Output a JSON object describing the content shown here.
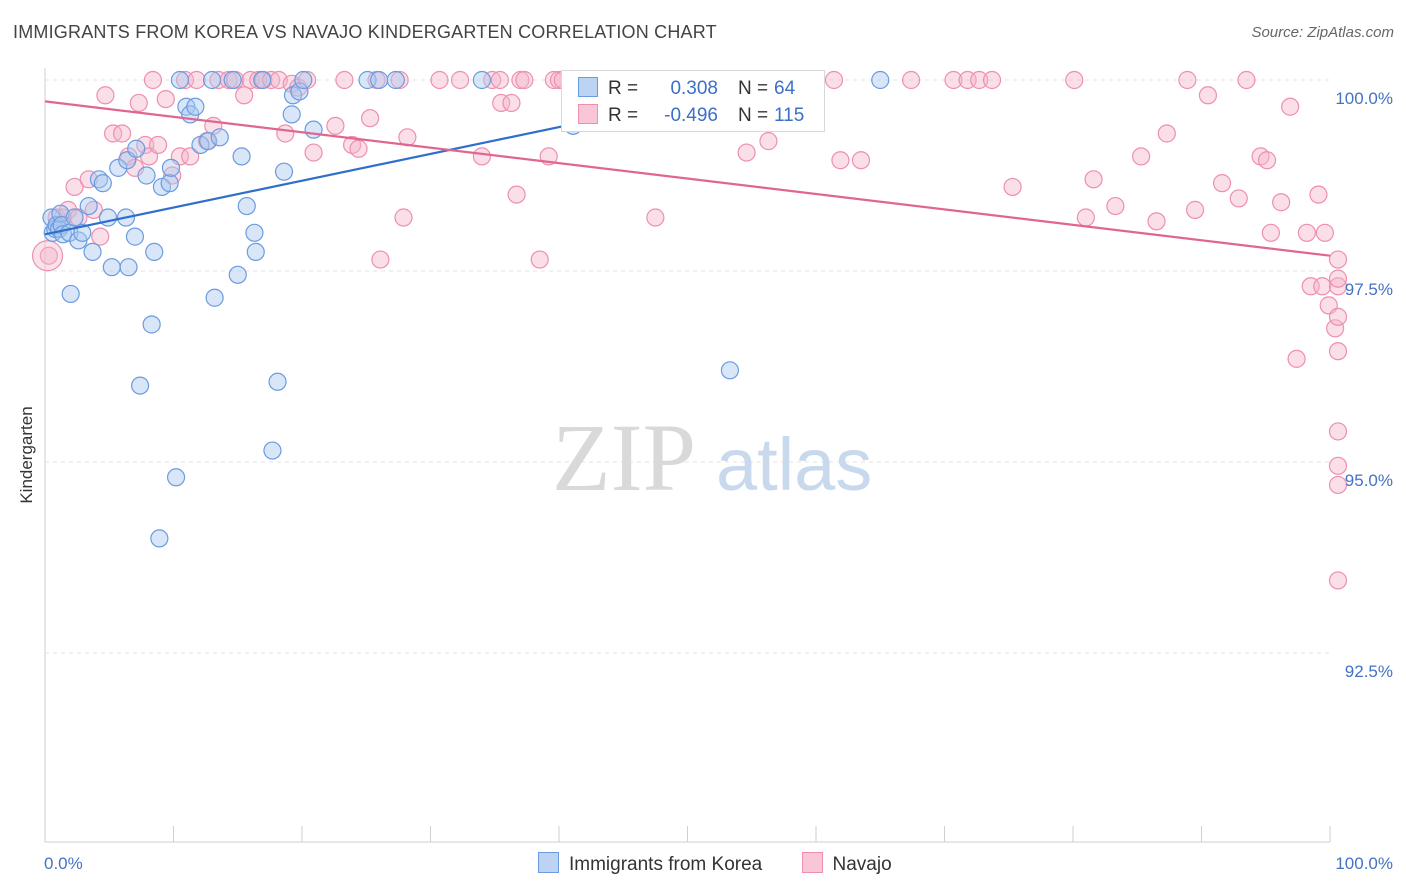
{
  "header": {
    "title": "IMMIGRANTS FROM KOREA VS NAVAJO KINDERGARTEN CORRELATION CHART",
    "source": "Source: ZipAtlas.com"
  },
  "watermark": {
    "zip": "ZIP",
    "atlas": "atlas"
  },
  "colors": {
    "korea_fill": "#a9c7ef",
    "korea_stroke": "#6b9be0",
    "korea_line": "#2f6fcb",
    "navajo_fill": "#f5b6cb",
    "navajo_stroke": "#ee8fae",
    "navajo_line": "#e0668f",
    "tick_text": "#4472c4"
  },
  "legend": {
    "rows": [
      {
        "r_label": "R =",
        "r_value": "0.308",
        "n_label": "N =",
        "n_value": "64"
      },
      {
        "r_label": "R =",
        "r_value": "-0.496",
        "n_label": "N =",
        "n_value": "115"
      }
    ]
  },
  "bottom_legend": {
    "series1": "Immigrants from Korea",
    "series2": "Navajo"
  },
  "chart_data": {
    "type": "scatter",
    "title": "IMMIGRANTS FROM KOREA VS NAVAJO KINDERGARTEN CORRELATION CHART",
    "xlabel": "",
    "ylabel": "Kindergarten",
    "xlim": [
      0,
      100
    ],
    "ylim": [
      90.5,
      100.15
    ],
    "x_ticks": [
      "0.0%",
      "100.0%"
    ],
    "y_ticks": [
      {
        "value": 100.0,
        "label": "100.0%"
      },
      {
        "value": 97.5,
        "label": "97.5%"
      },
      {
        "value": 95.0,
        "label": "95.0%"
      },
      {
        "value": 92.5,
        "label": "92.5%"
      }
    ],
    "legend_position": "top-center",
    "grid": true,
    "series": [
      {
        "name": "Immigrants from Korea",
        "trend": {
          "x0": 0,
          "y0": 97.98,
          "x1": 57,
          "y1": 99.98
        },
        "points": [
          [
            0.5,
            98.2
          ],
          [
            0.6,
            98.0
          ],
          [
            0.8,
            98.05
          ],
          [
            0.9,
            98.1
          ],
          [
            1.1,
            98.05
          ],
          [
            1.2,
            98.25
          ],
          [
            1.3,
            98.1
          ],
          [
            1.4,
            97.98
          ],
          [
            1.9,
            98.0
          ],
          [
            2.0,
            97.2
          ],
          [
            2.3,
            98.2
          ],
          [
            2.6,
            97.9
          ],
          [
            2.9,
            98.0
          ],
          [
            3.4,
            98.35
          ],
          [
            3.7,
            97.75
          ],
          [
            4.2,
            98.7
          ],
          [
            4.5,
            98.65
          ],
          [
            4.9,
            98.2
          ],
          [
            5.2,
            97.55
          ],
          [
            5.7,
            98.85
          ],
          [
            6.3,
            98.2
          ],
          [
            6.4,
            98.95
          ],
          [
            6.5,
            97.55
          ],
          [
            7.0,
            97.95
          ],
          [
            7.1,
            99.1
          ],
          [
            7.4,
            96.0
          ],
          [
            7.9,
            98.75
          ],
          [
            8.3,
            96.8
          ],
          [
            8.5,
            97.75
          ],
          [
            8.9,
            94.0
          ],
          [
            9.1,
            98.6
          ],
          [
            9.7,
            98.65
          ],
          [
            9.8,
            98.85
          ],
          [
            10.2,
            94.8
          ],
          [
            10.5,
            100.0
          ],
          [
            11.0,
            99.65
          ],
          [
            11.3,
            99.55
          ],
          [
            11.7,
            99.65
          ],
          [
            12.1,
            99.15
          ],
          [
            12.7,
            99.2
          ],
          [
            13.0,
            100.0
          ],
          [
            13.2,
            97.15
          ],
          [
            13.6,
            99.25
          ],
          [
            14.6,
            100.0
          ],
          [
            15.0,
            97.45
          ],
          [
            15.3,
            99.0
          ],
          [
            15.7,
            98.35
          ],
          [
            16.3,
            98.0
          ],
          [
            16.4,
            97.75
          ],
          [
            16.9,
            100.0
          ],
          [
            17.7,
            95.15
          ],
          [
            18.1,
            96.05
          ],
          [
            18.6,
            98.8
          ],
          [
            19.2,
            99.55
          ],
          [
            19.3,
            99.8
          ],
          [
            19.8,
            99.85
          ],
          [
            20.1,
            100.0
          ],
          [
            20.9,
            99.35
          ],
          [
            25.1,
            100.0
          ],
          [
            26.0,
            100.0
          ],
          [
            27.3,
            100.0
          ],
          [
            34.0,
            100.0
          ],
          [
            41.1,
            99.4
          ],
          [
            51.7,
            100.0
          ],
          [
            53.3,
            96.2
          ],
          [
            65.0,
            100.0
          ]
        ]
      },
      {
        "name": "Navajo",
        "trend": {
          "x0": 0,
          "y0": 99.72,
          "x1": 100,
          "y1": 97.7
        },
        "points": [
          [
            0.3,
            97.7
          ],
          [
            0.9,
            98.2
          ],
          [
            1.4,
            98.2
          ],
          [
            1.8,
            98.3
          ],
          [
            2.3,
            98.6
          ],
          [
            2.6,
            98.2
          ],
          [
            3.4,
            98.7
          ],
          [
            3.8,
            98.3
          ],
          [
            4.3,
            97.95
          ],
          [
            4.7,
            99.8
          ],
          [
            5.3,
            99.3
          ],
          [
            6.0,
            99.3
          ],
          [
            6.5,
            99.0
          ],
          [
            7.0,
            98.85
          ],
          [
            7.3,
            99.7
          ],
          [
            7.8,
            99.15
          ],
          [
            8.1,
            99.0
          ],
          [
            8.4,
            100.0
          ],
          [
            8.8,
            99.15
          ],
          [
            9.4,
            99.75
          ],
          [
            9.9,
            98.75
          ],
          [
            10.5,
            99.0
          ],
          [
            10.9,
            100.0
          ],
          [
            11.3,
            99.0
          ],
          [
            11.8,
            100.0
          ],
          [
            12.6,
            99.2
          ],
          [
            13.1,
            99.4
          ],
          [
            13.5,
            100.0
          ],
          [
            14.3,
            100.0
          ],
          [
            14.8,
            100.0
          ],
          [
            15.5,
            99.8
          ],
          [
            16.0,
            100.0
          ],
          [
            16.6,
            100.0
          ],
          [
            17.0,
            100.0
          ],
          [
            17.6,
            100.0
          ],
          [
            18.2,
            100.0
          ],
          [
            18.7,
            99.3
          ],
          [
            19.2,
            99.95
          ],
          [
            19.7,
            99.9
          ],
          [
            20.4,
            100.0
          ],
          [
            20.9,
            99.05
          ],
          [
            22.6,
            99.4
          ],
          [
            23.3,
            100.0
          ],
          [
            23.9,
            99.15
          ],
          [
            24.4,
            99.1
          ],
          [
            25.3,
            99.5
          ],
          [
            25.8,
            100.0
          ],
          [
            26.1,
            97.65
          ],
          [
            27.6,
            100.0
          ],
          [
            27.9,
            98.2
          ],
          [
            28.2,
            99.25
          ],
          [
            30.7,
            100.0
          ],
          [
            32.3,
            100.0
          ],
          [
            34.0,
            99.0
          ],
          [
            34.8,
            100.0
          ],
          [
            35.5,
            99.7
          ],
          [
            36.3,
            99.7
          ],
          [
            35.4,
            100.0
          ],
          [
            36.7,
            98.5
          ],
          [
            37.0,
            100.0
          ],
          [
            37.3,
            100.0
          ],
          [
            38.5,
            97.65
          ],
          [
            39.2,
            99.0
          ],
          [
            39.6,
            100.0
          ],
          [
            40.0,
            100.0
          ],
          [
            40.3,
            100.0
          ],
          [
            42.3,
            100.0
          ],
          [
            42.7,
            100.0
          ],
          [
            45.0,
            100.0
          ],
          [
            47.5,
            98.2
          ],
          [
            52.0,
            100.0
          ],
          [
            54.6,
            99.05
          ],
          [
            56.3,
            99.2
          ],
          [
            57.0,
            99.85
          ],
          [
            58.3,
            100.0
          ],
          [
            59.0,
            100.0
          ],
          [
            61.4,
            100.0
          ],
          [
            61.9,
            98.95
          ],
          [
            63.5,
            98.95
          ],
          [
            67.4,
            100.0
          ],
          [
            70.7,
            100.0
          ],
          [
            71.8,
            100.0
          ],
          [
            72.7,
            100.0
          ],
          [
            73.7,
            100.0
          ],
          [
            75.3,
            98.6
          ],
          [
            80.1,
            100.0
          ],
          [
            81.0,
            98.2
          ],
          [
            81.6,
            98.7
          ],
          [
            83.3,
            98.35
          ],
          [
            85.3,
            99.0
          ],
          [
            86.5,
            98.15
          ],
          [
            87.3,
            99.3
          ],
          [
            88.9,
            100.0
          ],
          [
            89.5,
            98.3
          ],
          [
            90.5,
            99.8
          ],
          [
            91.6,
            98.65
          ],
          [
            92.9,
            98.45
          ],
          [
            93.5,
            100.0
          ],
          [
            94.6,
            99.0
          ],
          [
            95.1,
            98.95
          ],
          [
            95.4,
            98.0
          ],
          [
            96.2,
            98.4
          ],
          [
            96.9,
            99.65
          ],
          [
            97.4,
            96.35
          ],
          [
            98.2,
            98.0
          ],
          [
            98.5,
            97.3
          ],
          [
            99.1,
            98.5
          ],
          [
            99.4,
            97.3
          ],
          [
            99.6,
            98.0
          ],
          [
            99.9,
            97.05
          ],
          [
            100.4,
            96.75
          ],
          [
            100.8,
            97.65
          ],
          [
            101.3,
            97.3
          ],
          [
            101.7,
            95.4
          ],
          [
            102.2,
            93.45
          ],
          [
            102.5,
            94.95
          ],
          [
            102.8,
            96.9
          ],
          [
            103.3,
            94.7
          ],
          [
            103.6,
            96.45
          ],
          [
            104.0,
            97.4
          ]
        ]
      }
    ]
  }
}
